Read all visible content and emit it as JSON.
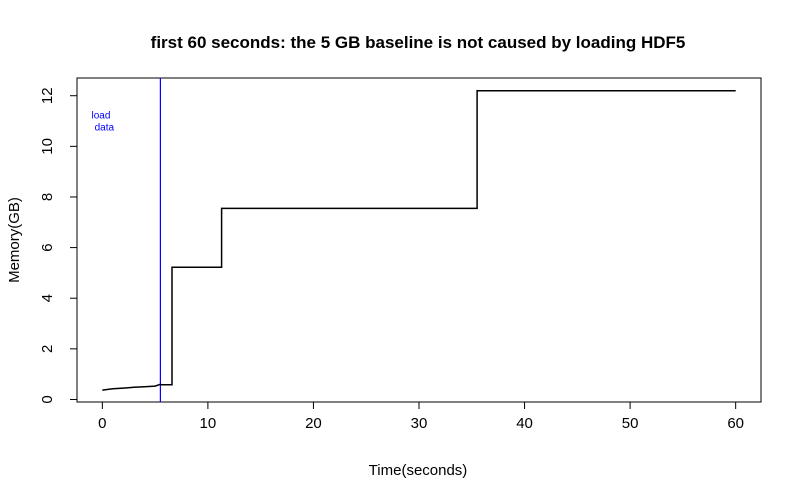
{
  "chart_data": {
    "type": "line",
    "title": "first 60 seconds: the 5 GB baseline is not caused by loading HDF5",
    "xlabel": "Time(seconds)",
    "ylabel": "Memory(GB)",
    "xlim": [
      -2.4,
      62.4
    ],
    "ylim": [
      -0.1,
      12.7
    ],
    "x_ticks": [
      0,
      10,
      20,
      30,
      40,
      50,
      60
    ],
    "y_ticks": [
      0,
      2,
      4,
      6,
      8,
      10,
      12
    ],
    "grid": false,
    "series": [
      {
        "color": "#000000",
        "x": [
          0,
          1,
          2,
          3,
          4,
          5,
          5.5,
          5.6,
          6.6,
          6.6,
          11.3,
          11.3,
          35.5,
          35.5,
          60
        ],
        "y": [
          0.37,
          0.42,
          0.45,
          0.48,
          0.5,
          0.53,
          0.6,
          0.58,
          0.58,
          5.22,
          5.22,
          7.55,
          7.55,
          12.2,
          12.2
        ]
      }
    ],
    "vline": {
      "x": 5.5,
      "color": "#0000ff"
    },
    "annotation": {
      "lines": [
        "load",
        "data"
      ],
      "x": 0,
      "y": 11.1,
      "color": "#0000ff"
    }
  }
}
